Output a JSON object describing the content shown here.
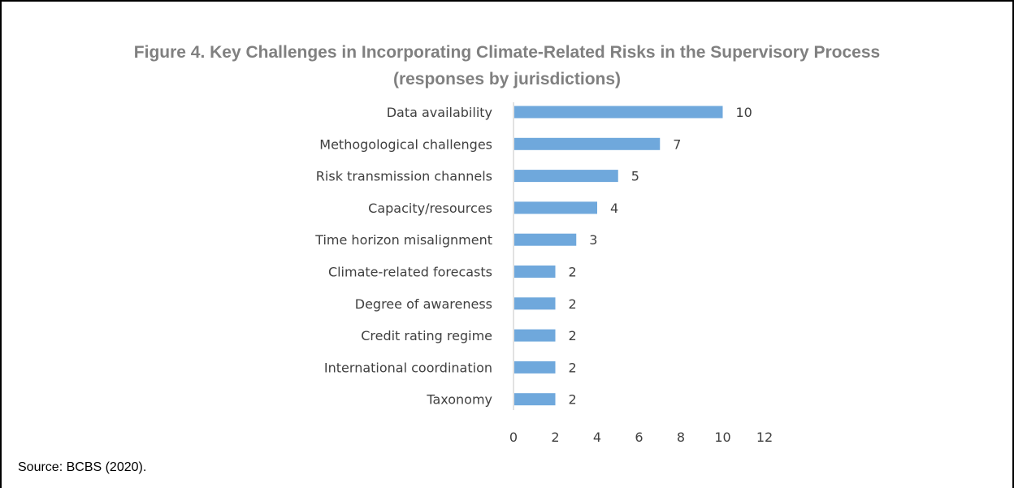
{
  "figure": {
    "title_line1": "Figure 4. Key Challenges in Incorporating Climate-Related Risks in the Supervisory Process",
    "title_line2": "(responses by jurisdictions)",
    "source": "Source: BCBS (2020)."
  },
  "chart_data": {
    "type": "bar",
    "orientation": "horizontal",
    "categories": [
      "Data availability",
      "Methogological challenges",
      "Risk transmission channels",
      "Capacity/resources",
      "Time horizon misalignment",
      "Climate-related forecasts",
      "Degree of awareness",
      "Credit rating regime",
      "International coordination",
      "Taxonomy"
    ],
    "values": [
      10,
      7,
      5,
      4,
      3,
      2,
      2,
      2,
      2,
      2
    ],
    "xlim": [
      0,
      12
    ],
    "xticks": [
      0,
      2,
      4,
      6,
      8,
      10,
      12
    ],
    "grid": false,
    "data_labels": true,
    "bar_color": "#6fa8dc",
    "axis_color": "#d9d9d9"
  }
}
